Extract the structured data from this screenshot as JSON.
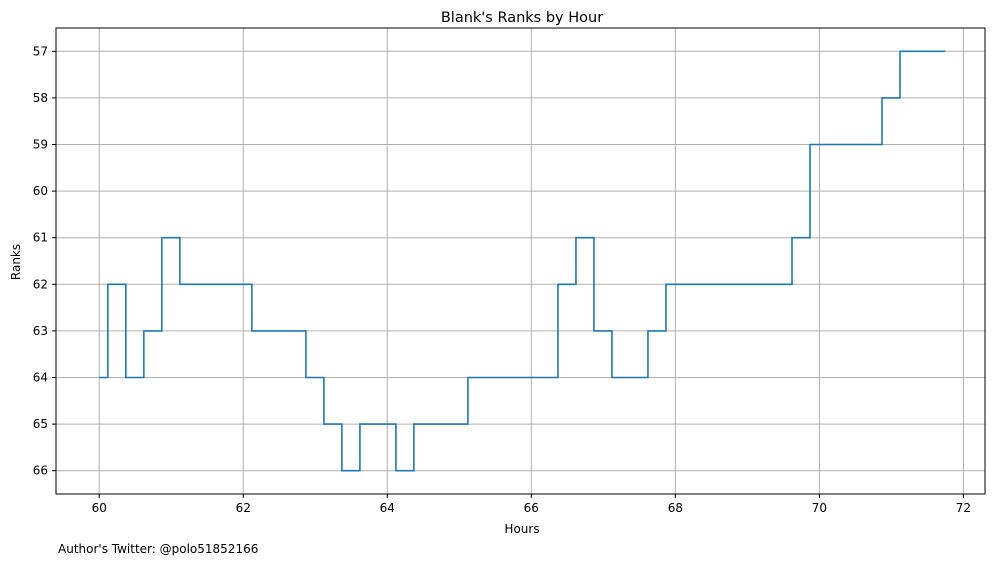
{
  "footer": {
    "note": "Author's Twitter: @polo51852166"
  },
  "colors": {
    "series": "#1f77b4",
    "grid": "#b0b0b0",
    "axis": "#000000"
  },
  "chart_data": {
    "type": "line",
    "step": "post",
    "title": "Blank's Ranks by Hour",
    "xlabel": "Hours",
    "ylabel": "Ranks",
    "xlim": [
      59.4,
      72.3
    ],
    "ylim": [
      66.5,
      56.5
    ],
    "y_inverted": true,
    "grid": true,
    "legend": "none",
    "xticks": [
      60,
      62,
      64,
      66,
      68,
      70,
      72
    ],
    "yticks": [
      57,
      58,
      59,
      60,
      61,
      62,
      63,
      64,
      65,
      66
    ],
    "series": [
      {
        "x": [
          60.0,
          60.12,
          60.37,
          60.62,
          60.87,
          61.12,
          62.12,
          62.87,
          63.12,
          63.37,
          63.62,
          64.12,
          64.37,
          65.12,
          66.37,
          66.62,
          66.87,
          67.12,
          67.62,
          67.87,
          69.62,
          69.87,
          70.87,
          71.12,
          71.75
        ],
        "y": [
          64,
          62,
          64,
          63,
          61,
          62,
          63,
          64,
          65,
          66,
          65,
          66,
          65,
          64,
          62,
          61,
          63,
          64,
          63,
          62,
          61,
          59,
          58,
          57,
          57
        ]
      }
    ]
  }
}
